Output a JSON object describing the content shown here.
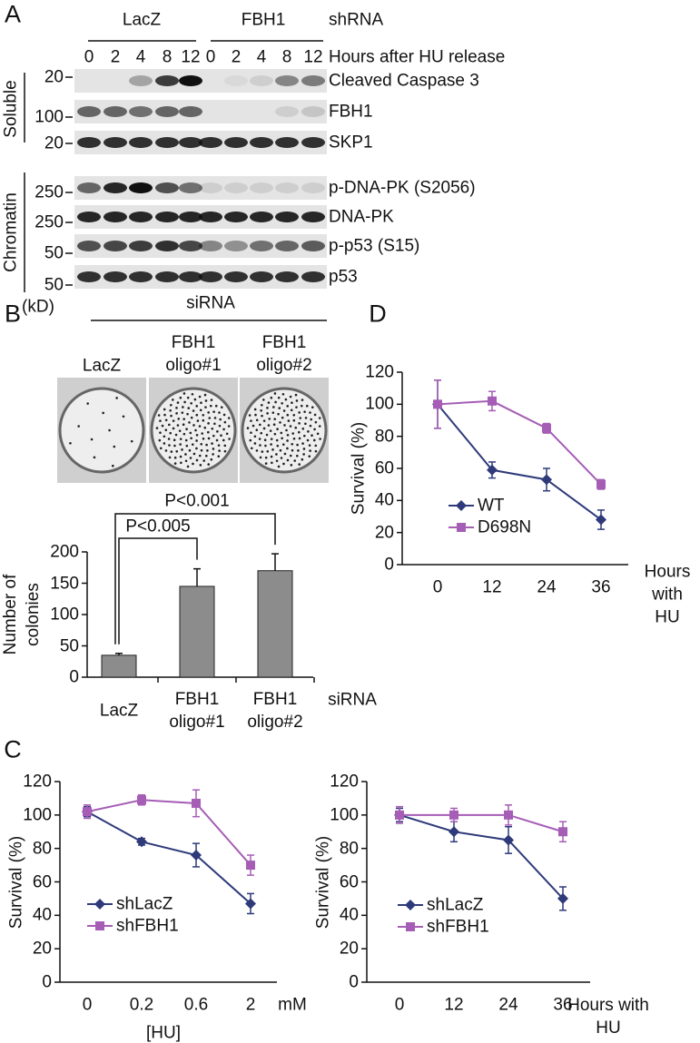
{
  "panels": {
    "a": "A",
    "b": "B",
    "c": "C",
    "d": "D"
  },
  "blot": {
    "groups": [
      "LacZ",
      "FBH1"
    ],
    "group_label": "shRNA",
    "time_label": "Hours after HU release",
    "hours": [
      "0",
      "2",
      "4",
      "8",
      "12",
      "0",
      "2",
      "4",
      "8",
      "12"
    ],
    "rows": [
      {
        "marker": "20",
        "label": "Cleaved Caspase 3"
      },
      {
        "marker": "100",
        "label": "FBH1"
      },
      {
        "marker": "20",
        "label": "SKP1"
      },
      {
        "marker": "250",
        "label": "p-DNA-PK (S2056)"
      },
      {
        "marker": "250",
        "label": "DNA-PK"
      },
      {
        "marker": "50",
        "label": "p-p53 (S15)"
      },
      {
        "marker": "50",
        "label": "p53"
      }
    ],
    "unit": "(kD)",
    "fractions": [
      "Soluble",
      "Chromatin"
    ]
  },
  "dishes": {
    "header": "siRNA",
    "labels": [
      "LacZ",
      "FBH1\noligo#1",
      "FBH1\noligo#2"
    ]
  },
  "chart_data": [
    {
      "type": "bar",
      "categories": [
        "LacZ",
        "FBH1\noligo#1",
        "FBH1\noligo#2"
      ],
      "values": [
        35,
        145,
        170
      ],
      "errors": [
        3,
        28,
        27
      ],
      "color": "#8c8c8c",
      "ylabel": "Number of\ncolonies",
      "xlabel": "siRNA",
      "ylim": [
        0,
        200
      ],
      "yticks": [
        0,
        50,
        100,
        150,
        200
      ],
      "annotations": [
        "P<0.005",
        "P<0.001"
      ],
      "grid": false
    },
    {
      "type": "line",
      "categories": [
        "0",
        "0.2",
        "0.6",
        "2"
      ],
      "x_unit": "mM",
      "xlabel": "[HU]",
      "ylabel": "Survival (%)",
      "ylim": [
        0,
        120
      ],
      "yticks": [
        0,
        20,
        40,
        60,
        80,
        100,
        120
      ],
      "legend": "lower left",
      "grid": false,
      "series": [
        {
          "name": "shLacZ",
          "color": "#2e3a7a",
          "marker": "diamond",
          "values": [
            102,
            84,
            76,
            47
          ],
          "errors": [
            3,
            2,
            7,
            6
          ]
        },
        {
          "name": "shFBH1",
          "color": "#a55db5",
          "marker": "square",
          "values": [
            102,
            109,
            107,
            70
          ],
          "errors": [
            4,
            3,
            8,
            6
          ]
        }
      ]
    },
    {
      "type": "line",
      "categories": [
        "0",
        "12",
        "24",
        "36"
      ],
      "xlabel": "Hours with\nHU",
      "ylabel": "Survival (%)",
      "ylim": [
        0,
        120
      ],
      "yticks": [
        0,
        20,
        40,
        60,
        80,
        100,
        120
      ],
      "legend": "lower left",
      "grid": false,
      "series": [
        {
          "name": "shLacZ",
          "color": "#2e3a7a",
          "marker": "diamond",
          "values": [
            100,
            90,
            85,
            50
          ],
          "errors": [
            4,
            6,
            8,
            7
          ]
        },
        {
          "name": "shFBH1",
          "color": "#a55db5",
          "marker": "square",
          "values": [
            100,
            100,
            100,
            90
          ],
          "errors": [
            5,
            4,
            6,
            6
          ]
        }
      ]
    },
    {
      "type": "line",
      "categories": [
        "0",
        "12",
        "24",
        "36"
      ],
      "xlabel": "Hours\nwith HU",
      "ylabel": "Survival (%)",
      "ylim": [
        0,
        120
      ],
      "yticks": [
        0,
        20,
        40,
        60,
        80,
        100,
        120
      ],
      "legend": "lower left",
      "grid": false,
      "series": [
        {
          "name": "WT",
          "color": "#2e3a7a",
          "marker": "diamond",
          "values": [
            100,
            59,
            53,
            28
          ],
          "errors": [
            15,
            5,
            7,
            6
          ]
        },
        {
          "name": "D698N",
          "color": "#a55db5",
          "marker": "square",
          "values": [
            100,
            102,
            85,
            50
          ],
          "errors": [
            15,
            6,
            3,
            3
          ]
        }
      ]
    }
  ]
}
